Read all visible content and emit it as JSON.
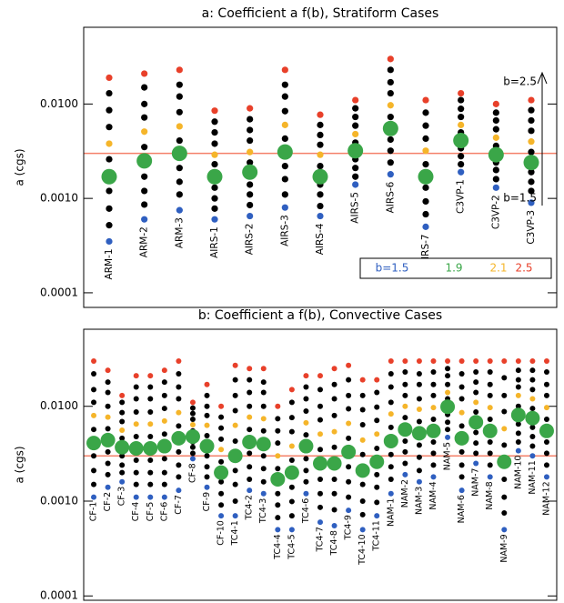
{
  "chart_data": [
    {
      "type": "scatter",
      "title": "a: Coefficient a f(b), Stratiform Cases",
      "y_label": "a (cgs)",
      "log_scale": true,
      "ylim": [
        7e-05,
        0.065
      ],
      "yticks": [
        {
          "value": 0.0001,
          "label": "0.0001"
        },
        {
          "value": 0.001,
          "label": "0.0010"
        },
        {
          "value": 0.01,
          "label": "0.0100"
        }
      ],
      "hline": {
        "value": 0.003,
        "color": "#f4806a"
      },
      "b": [
        1.5,
        1.6,
        1.7,
        1.8,
        1.9,
        2.0,
        2.1,
        2.2,
        2.3,
        2.4,
        2.5
      ],
      "default_color": "#000000",
      "large_b": 1.9,
      "legend": {
        "position": "lower right",
        "entries": [
          {
            "label": "b=1.5",
            "b": 1.5,
            "color": "#2f5fc0"
          },
          {
            "label": "1.9",
            "b": 1.9,
            "color": "#3aa648"
          },
          {
            "label": "2.1",
            "b": 2.1,
            "color": "#f5b52a"
          },
          {
            "label": "2.5",
            "b": 2.5,
            "color": "#e8402a"
          }
        ]
      },
      "annotations": [
        "b=2.5",
        "b=1.5"
      ],
      "cases": [
        {
          "name": "ARM-1",
          "values": [
            0.00035,
            0.00052,
            0.00078,
            0.0012,
            0.0017,
            0.0026,
            0.0038,
            0.0057,
            0.0086,
            0.013,
            0.019
          ]
        },
        {
          "name": "ARM-2",
          "values": [
            0.0006,
            0.00086,
            0.0012,
            0.0017,
            0.0025,
            0.0035,
            0.0051,
            0.0072,
            0.01,
            0.015,
            0.021
          ]
        },
        {
          "name": "ARM-3",
          "values": [
            0.00075,
            0.0011,
            0.0015,
            0.0021,
            0.003,
            0.0041,
            0.0058,
            0.0082,
            0.012,
            0.016,
            0.023
          ]
        },
        {
          "name": "AIRS-1",
          "values": [
            0.0006,
            0.00078,
            0.001,
            0.0013,
            0.0017,
            0.0023,
            0.0029,
            0.0038,
            0.005,
            0.0065,
            0.0085
          ]
        },
        {
          "name": "AIRS-2",
          "values": [
            0.00065,
            0.00085,
            0.0011,
            0.0014,
            0.0019,
            0.0024,
            0.0031,
            0.0041,
            0.0053,
            0.0069,
            0.009
          ]
        },
        {
          "name": "AIRS-3",
          "values": [
            0.0008,
            0.0011,
            0.0016,
            0.0022,
            0.0031,
            0.0043,
            0.006,
            0.0084,
            0.012,
            0.016,
            0.023
          ]
        },
        {
          "name": "AIRS-4",
          "values": [
            0.00065,
            0.00083,
            0.0011,
            0.0014,
            0.0017,
            0.0022,
            0.0029,
            0.0037,
            0.0047,
            0.006,
            0.0077
          ]
        },
        {
          "name": "AIRS-5",
          "values": [
            0.0014,
            0.0017,
            0.0021,
            0.0026,
            0.0032,
            0.0039,
            0.0048,
            0.0059,
            0.0073,
            0.009,
            0.011
          ]
        },
        {
          "name": "AIRS-6",
          "values": [
            0.0018,
            0.0024,
            0.0032,
            0.0042,
            0.0055,
            0.0073,
            0.0097,
            0.013,
            0.017,
            0.023,
            0.03
          ]
        },
        {
          "name": "AIRS-7",
          "values": [
            0.0005,
            0.00068,
            0.00093,
            0.0013,
            0.0017,
            0.0023,
            0.0032,
            0.0043,
            0.0059,
            0.0081,
            0.011
          ]
        },
        {
          "name": "C3VP-1",
          "values": [
            0.0019,
            0.0023,
            0.0028,
            0.0034,
            0.0041,
            0.005,
            0.006,
            0.0073,
            0.0089,
            0.011,
            0.013
          ]
        },
        {
          "name": "C3VP-2",
          "values": [
            0.0013,
            0.0016,
            0.002,
            0.0024,
            0.0029,
            0.0036,
            0.0044,
            0.0054,
            0.0067,
            0.0081,
            0.01
          ]
        },
        {
          "name": "C3VP-3",
          "values": [
            0.0009,
            0.0012,
            0.0015,
            0.0019,
            0.0024,
            0.0031,
            0.004,
            0.0052,
            0.0067,
            0.0086,
            0.011
          ]
        }
      ]
    },
    {
      "type": "scatter",
      "title": "b: Coefficient a f(b), Convective Cases",
      "y_label": "a (cgs)",
      "log_scale": true,
      "ylim": [
        9e-05,
        0.065
      ],
      "yticks": [
        {
          "value": 0.0001,
          "label": "0.0001"
        },
        {
          "value": 0.001,
          "label": "0.0010"
        },
        {
          "value": 0.01,
          "label": "0.0100"
        }
      ],
      "hline": {
        "value": 0.003,
        "color": "#f4806a"
      },
      "b": [
        1.5,
        1.6,
        1.7,
        1.8,
        1.9,
        2.0,
        2.1,
        2.2,
        2.3,
        2.4,
        2.5
      ],
      "default_color": "#000000",
      "large_b": 1.9,
      "b_colors": [
        {
          "b": 1.5,
          "color": "#2f5fc0"
        },
        {
          "b": 1.9,
          "color": "#3aa648"
        },
        {
          "b": 2.1,
          "color": "#f5b52a"
        },
        {
          "b": 2.5,
          "color": "#e8402a"
        }
      ],
      "cases": [
        {
          "name": "CF-1",
          "values": [
            0.0011,
            0.0015,
            0.0021,
            0.003,
            0.0041,
            0.0057,
            0.008,
            0.011,
            0.015,
            0.022,
            0.03
          ]
        },
        {
          "name": "CF-2",
          "values": [
            0.0014,
            0.0019,
            0.0025,
            0.0033,
            0.0044,
            0.0058,
            0.0077,
            0.01,
            0.014,
            0.018,
            0.024
          ]
        },
        {
          "name": "CF-3",
          "values": [
            0.0016,
            0.002,
            0.0024,
            0.003,
            0.0037,
            0.0046,
            0.0056,
            0.0069,
            0.0086,
            0.011,
            0.013
          ]
        },
        {
          "name": "CF-4",
          "values": [
            0.0011,
            0.0015,
            0.002,
            0.0027,
            0.0036,
            0.0048,
            0.0065,
            0.0087,
            0.012,
            0.016,
            0.021
          ]
        },
        {
          "name": "CF-5",
          "values": [
            0.0011,
            0.0015,
            0.002,
            0.0027,
            0.0036,
            0.0048,
            0.0065,
            0.0087,
            0.012,
            0.016,
            0.021
          ]
        },
        {
          "name": "CF-6",
          "values": [
            0.0011,
            0.0015,
            0.002,
            0.0028,
            0.0038,
            0.0051,
            0.007,
            0.0095,
            0.013,
            0.018,
            0.024
          ]
        },
        {
          "name": "CF-7",
          "values": [
            0.0013,
            0.0018,
            0.0024,
            0.0033,
            0.0046,
            0.0062,
            0.0086,
            0.012,
            0.016,
            0.022,
            0.03
          ]
        },
        {
          "name": "CF-8",
          "values": [
            0.0028,
            0.0032,
            0.0037,
            0.0042,
            0.0048,
            0.0055,
            0.0064,
            0.0073,
            0.0084,
            0.0096,
            0.011
          ]
        },
        {
          "name": "CF-9",
          "values": [
            0.0014,
            0.0018,
            0.0023,
            0.003,
            0.0038,
            0.0049,
            0.0063,
            0.008,
            0.01,
            0.013,
            0.017
          ]
        },
        {
          "name": "CF-10",
          "values": [
            0.0007,
            0.00091,
            0.0012,
            0.0016,
            0.002,
            0.0026,
            0.0035,
            0.0045,
            0.0059,
            0.0077,
            0.01
          ]
        },
        {
          "name": "TC4-1",
          "values": [
            0.0007,
            0.001,
            0.0015,
            0.0021,
            0.003,
            0.0043,
            0.0063,
            0.009,
            0.013,
            0.019,
            0.027
          ]
        },
        {
          "name": "TC4-2",
          "values": [
            0.0013,
            0.0017,
            0.0023,
            0.0032,
            0.0042,
            0.0057,
            0.0077,
            0.01,
            0.014,
            0.019,
            0.025
          ]
        },
        {
          "name": "TC4-3",
          "values": [
            0.0012,
            0.0016,
            0.0022,
            0.003,
            0.004,
            0.0055,
            0.0074,
            0.01,
            0.014,
            0.018,
            0.025
          ]
        },
        {
          "name": "TC4-4",
          "values": [
            0.0005,
            0.00067,
            0.00091,
            0.0012,
            0.0017,
            0.0022,
            0.003,
            0.0041,
            0.0055,
            0.0074,
            0.01
          ]
        },
        {
          "name": "TC4-5",
          "values": [
            0.0005,
            0.0007,
            0.00099,
            0.0014,
            0.002,
            0.0027,
            0.0038,
            0.0054,
            0.0076,
            0.011,
            0.015
          ]
        },
        {
          "name": "TC4-6",
          "values": [
            0.0012,
            0.0016,
            0.0021,
            0.0028,
            0.0038,
            0.005,
            0.0067,
            0.0089,
            0.012,
            0.016,
            0.021
          ]
        },
        {
          "name": "TC4-7",
          "values": [
            0.0006,
            0.00086,
            0.0012,
            0.0017,
            0.0025,
            0.0035,
            0.0051,
            0.0072,
            0.01,
            0.015,
            0.021
          ]
        },
        {
          "name": "TC4-8",
          "values": [
            0.00055,
            0.00081,
            0.0012,
            0.0017,
            0.0025,
            0.0037,
            0.0054,
            0.008,
            0.012,
            0.017,
            0.025
          ]
        },
        {
          "name": "TC4-9",
          "values": [
            0.0008,
            0.0011,
            0.0016,
            0.0023,
            0.0033,
            0.0046,
            0.0066,
            0.0094,
            0.013,
            0.019,
            0.027
          ]
        },
        {
          "name": "TC4-10",
          "values": [
            0.0005,
            0.00072,
            0.001,
            0.0015,
            0.0021,
            0.0031,
            0.0044,
            0.0064,
            0.0092,
            0.013,
            0.019
          ]
        },
        {
          "name": "TC4-11",
          "values": [
            0.0007,
            0.00097,
            0.0014,
            0.0019,
            0.0026,
            0.0036,
            0.0051,
            0.0071,
            0.0098,
            0.014,
            0.019
          ]
        },
        {
          "name": "NAM-1",
          "values": [
            0.0012,
            0.0017,
            0.0023,
            0.0031,
            0.0043,
            0.006,
            0.0083,
            0.011,
            0.016,
            0.022,
            0.03
          ]
        },
        {
          "name": "NAM-2",
          "values": [
            0.0019,
            0.0025,
            0.0033,
            0.0043,
            0.0057,
            0.0076,
            0.01,
            0.013,
            0.017,
            0.023,
            0.03
          ]
        },
        {
          "name": "NAM-3",
          "values": [
            0.0016,
            0.0021,
            0.0029,
            0.0039,
            0.0052,
            0.0069,
            0.0093,
            0.012,
            0.017,
            0.022,
            0.03
          ]
        },
        {
          "name": "NAM-4",
          "values": [
            0.0018,
            0.0024,
            0.0032,
            0.0042,
            0.0055,
            0.0073,
            0.0097,
            0.013,
            0.017,
            0.023,
            0.03
          ]
        },
        {
          "name": "NAM-5",
          "values": [
            0.0047,
            0.0057,
            0.0068,
            0.0082,
            0.0099,
            0.012,
            0.014,
            0.017,
            0.021,
            0.025,
            0.03
          ]
        },
        {
          "name": "NAM-6",
          "values": [
            0.0013,
            0.0018,
            0.0024,
            0.0033,
            0.0046,
            0.0062,
            0.0086,
            0.012,
            0.016,
            0.022,
            0.03
          ]
        },
        {
          "name": "NAM-7",
          "values": [
            0.0025,
            0.0032,
            0.0041,
            0.0053,
            0.0068,
            0.0087,
            0.011,
            0.014,
            0.018,
            0.023,
            0.03
          ]
        },
        {
          "name": "NAM-8",
          "values": [
            0.0018,
            0.0024,
            0.0032,
            0.0042,
            0.0055,
            0.0073,
            0.0097,
            0.013,
            0.017,
            0.023,
            0.03
          ]
        },
        {
          "name": "NAM-9",
          "values": [
            0.0005,
            0.00075,
            0.0011,
            0.0017,
            0.0026,
            0.0039,
            0.0058,
            0.0088,
            0.013,
            0.02,
            0.03
          ]
        },
        {
          "name": "NAM-10",
          "values": [
            0.0034,
            0.0042,
            0.0052,
            0.0065,
            0.0081,
            0.01,
            0.013,
            0.016,
            0.019,
            0.024,
            0.03
          ]
        },
        {
          "name": "NAM-11",
          "values": [
            0.003,
            0.0038,
            0.0048,
            0.006,
            0.0075,
            0.0095,
            0.012,
            0.015,
            0.019,
            0.024,
            0.03
          ]
        },
        {
          "name": "NAM-12",
          "values": [
            0.0018,
            0.0024,
            0.0032,
            0.0042,
            0.0055,
            0.0073,
            0.0097,
            0.013,
            0.017,
            0.023,
            0.03
          ]
        }
      ]
    }
  ]
}
